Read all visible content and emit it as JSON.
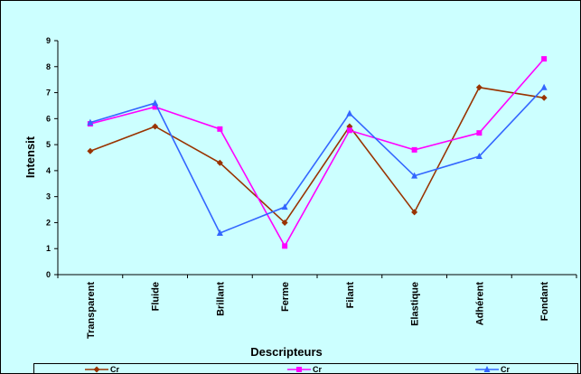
{
  "chart_data": {
    "type": "line",
    "categories": [
      "Transparent",
      "Fluide",
      "Brillant",
      "Ferme",
      "Filant",
      "Elastique",
      "Adhérent",
      "Fondant"
    ],
    "series": [
      {
        "name": "Cr",
        "color": "#993300",
        "marker": "diamond",
        "values": [
          4.75,
          5.7,
          4.3,
          2.0,
          5.7,
          2.4,
          7.2,
          6.8
        ]
      },
      {
        "name": "Cr",
        "color": "#ff00ff",
        "marker": "square",
        "values": [
          5.8,
          6.45,
          5.6,
          1.1,
          5.55,
          4.8,
          5.45,
          8.3
        ]
      },
      {
        "name": "Cr",
        "color": "#3366ff",
        "marker": "triangle",
        "values": [
          5.85,
          6.6,
          1.6,
          2.6,
          6.2,
          3.8,
          4.55,
          7.2
        ]
      }
    ],
    "yticks": [
      "0",
      "1",
      "2",
      "3",
      "4",
      "5",
      "6",
      "7",
      "8",
      "9"
    ],
    "ylim": [
      0,
      9
    ],
    "xlabel": "Descripteurs",
    "ylabel": "Intensit",
    "legend_position": "bottom",
    "background_color": "#ccffff",
    "grid": false
  }
}
